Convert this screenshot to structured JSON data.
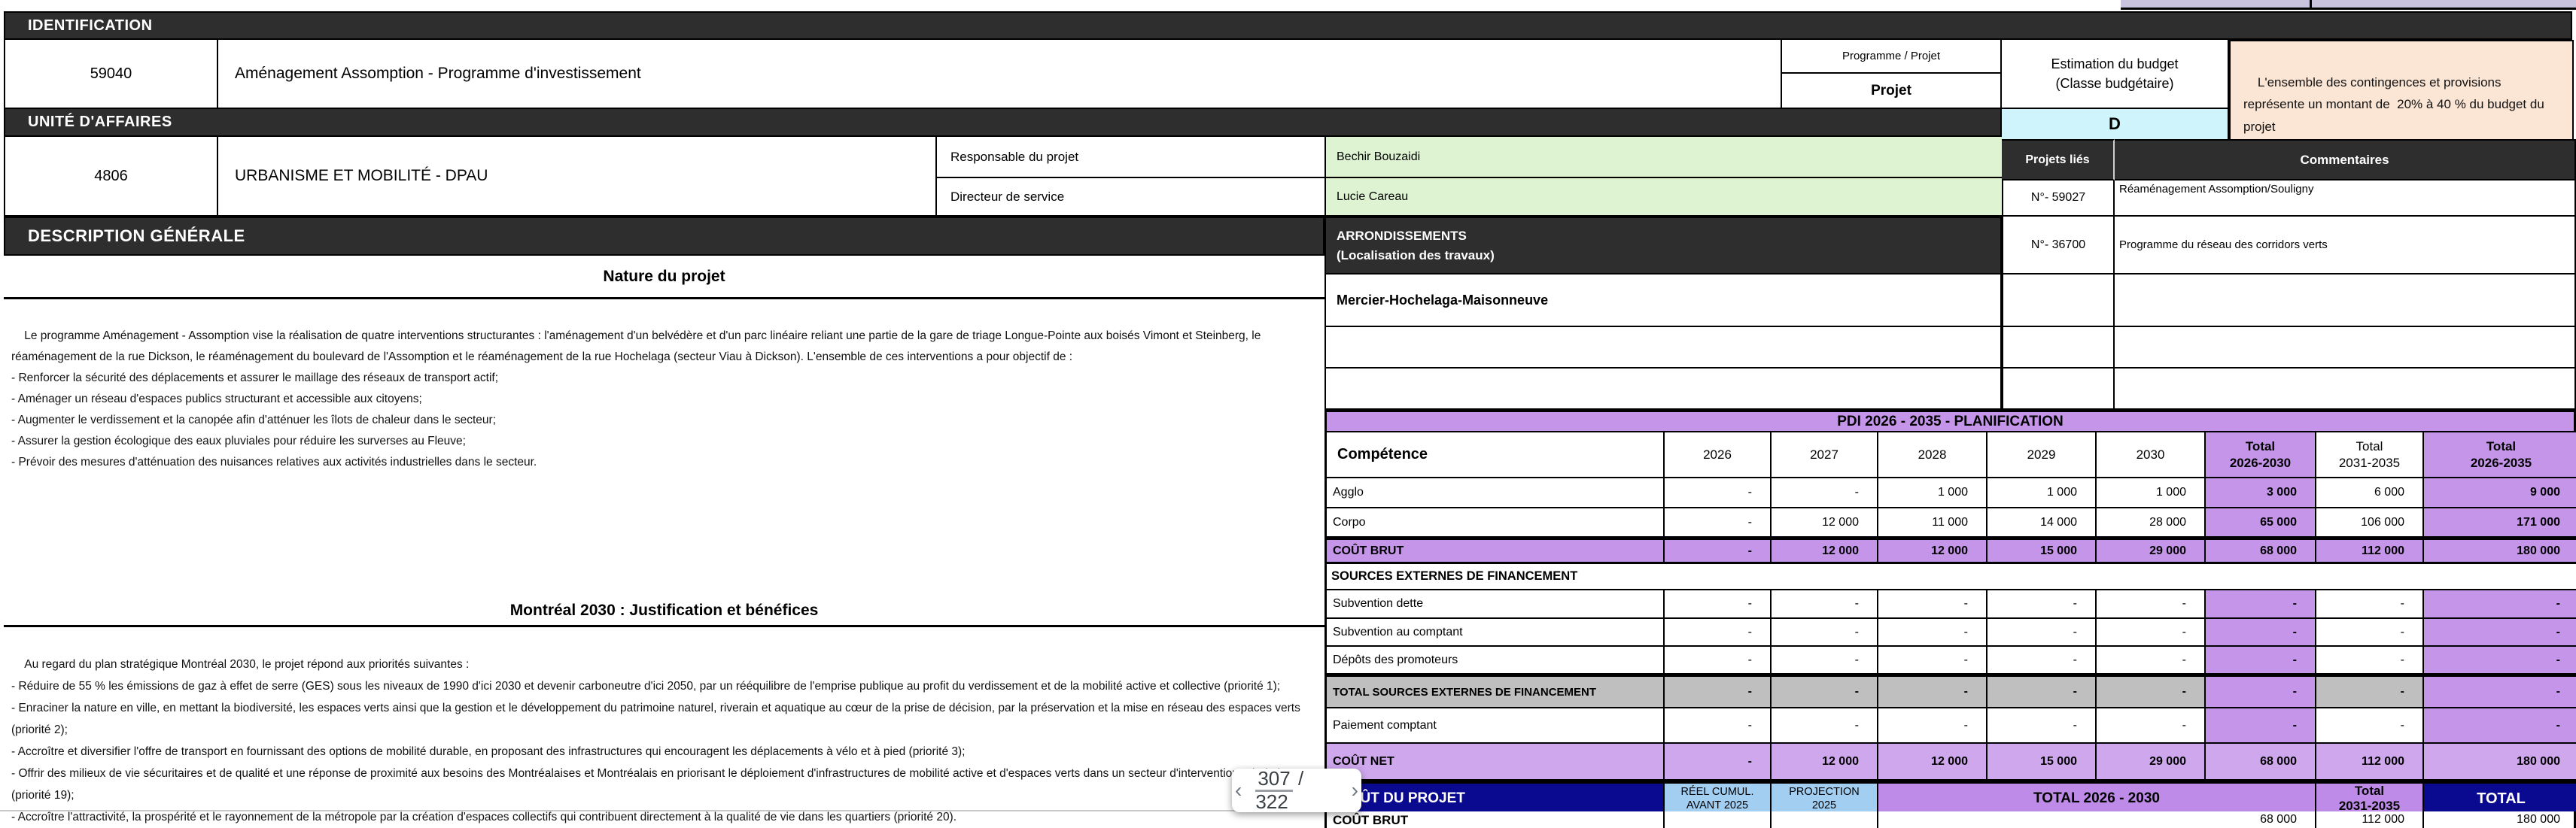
{
  "colors": {
    "bar_dark": "#2E2E2E",
    "green_cell": "#DEF3D2",
    "cyan_cell": "#CFF4FB",
    "peach_note": "#FBE5D5",
    "lavender_band": "#C9C3DE",
    "purple_strong": "#C495E9",
    "purple_light": "#CEA7EC",
    "purple_header": "#BE8CE8",
    "gray_row": "#BFBFBF",
    "navy": "#0A0A91",
    "light_blue": "#A2CEF2"
  },
  "identification": {
    "section_label": "IDENTIFICATION",
    "project_id": "59040",
    "project_title": "Aménagement Assomption - Programme d'investissement",
    "programme_projet": {
      "label": "Programme / Projet",
      "value": "Projet"
    },
    "budget": {
      "label": "Estimation du budget\n(Classe budgétaire)",
      "class_value": "D"
    },
    "note": "L'ensemble des contingences et provisions représente un montant de  20% à 40 % du budget du projet"
  },
  "unite": {
    "section_label": "UNITÉ D'AFFAIRES",
    "unit_id": "4806",
    "unit_name": "URBANISME ET MOBILITÉ - DPAU",
    "responsable": {
      "label": "Responsable du projet",
      "value": "Bechir Bouzaidi"
    },
    "directeur": {
      "label": "Directeur de service",
      "value": "Lucie Careau"
    }
  },
  "linked": {
    "header_num": "Projets liés",
    "header_comment": "Commentaires",
    "rows": [
      {
        "num": "N°- 59027",
        "comment": "Réaménagement Assomption/Souligny"
      },
      {
        "num": "N°- 36700",
        "comment": "Programme du réseau des corridors verts"
      },
      {
        "num": "",
        "comment": ""
      },
      {
        "num": "",
        "comment": ""
      },
      {
        "num": "",
        "comment": ""
      }
    ]
  },
  "description": {
    "section_label": "DESCRIPTION GÉNÉRALE",
    "arrondissements": {
      "label": "ARRONDISSEMENTS\n(Localisation des travaux)",
      "value": "Mercier-Hochelaga-Maisonneuve"
    },
    "nature": {
      "title": "Nature du projet",
      "text": "Le programme Aménagement - Assomption vise la réalisation de quatre interventions structurantes : l'aménagement d'un belvédère et d'un parc linéaire reliant une partie de la gare de triage Longue-Pointe aux boisés Vimont et Steinberg, le réaménagement de la rue Dickson, le réaménagement du boulevard de l'Assomption et le réaménagement de la rue Hochelaga (secteur Viau à Dickson). L'ensemble de ces interventions a pour objectif de :\n- Renforcer la sécurité des déplacements et assurer le maillage des réseaux de transport actif;\n- Aménager un réseau d'espaces publics structurant et accessible aux citoyens;\n- Augmenter le verdissement et la canopée afin d'atténuer les îlots de chaleur dans le secteur;\n- Assurer la gestion écologique des eaux pluviales pour réduire les surverses au Fleuve;\n- Prévoir des mesures d'atténuation des nuisances relatives aux activités industrielles dans le secteur."
    }
  },
  "montreal2030": {
    "title": "Montréal 2030 : Justification et bénéfices",
    "text": "Au regard du plan stratégique Montréal 2030, le projet répond aux priorités suivantes :\n- Réduire de 55 % les émissions de gaz à effet de serre (GES) sous les niveaux de 1990 d'ici 2030 et devenir carboneutre d'ici 2050, par un rééquilibre de l'emprise publique au profit du verdissement et de la mobilité active et collective (priorité 1);\n- Enraciner la nature en ville, en mettant la biodiversité, les espaces verts ainsi que la gestion et le développement du patrimoine naturel, riverain et aquatique au cœur de la prise de décision, par la préservation et la mise en réseau des espaces verts (priorité 2);\n- Accroître et diversifier l'offre de transport en fournissant des options de mobilité durable, en proposant des infrastructures qui encouragent les déplacements à vélo et à pied (priorité 3);\n- Offrir des milieux de vie sécuritaires et de qualité et une réponse de proximité aux besoins des Montréalaises et Montréalais en priorisant le déploiement d'infrastructures de mobilité active et d'espaces verts dans un secteur d'intervention prioritaire (priorité 19);\n- Accroître l'attractivité, la prospérité et le rayonnement de la métropole par la création d'espaces collectifs qui contribuent directement à la qualité de vie dans les quartiers (priorité 20)."
  },
  "pdi": {
    "title": "PDI 2026 - 2035 - PLANIFICATION",
    "columns": [
      "Compétence",
      "2026",
      "2027",
      "2028",
      "2029",
      "2030",
      "Total\n2026-2030",
      "Total\n2031-2035",
      "Total\n2026-2035"
    ],
    "rows": [
      {
        "label": "Agglo",
        "style": "normal",
        "values": [
          "-",
          "-",
          "1 000",
          "1 000",
          "1 000",
          "3 000",
          "6 000",
          "9 000"
        ]
      },
      {
        "label": "Corpo",
        "style": "normal",
        "values": [
          "-",
          "12 000",
          "11 000",
          "14 000",
          "28 000",
          "65 000",
          "106 000",
          "171 000"
        ]
      },
      {
        "label": "COÛT BRUT",
        "style": "brut",
        "values": [
          "-",
          "12 000",
          "12 000",
          "15 000",
          "29 000",
          "68 000",
          "112 000",
          "180 000"
        ]
      },
      {
        "label": "SOURCES EXTERNES DE FINANCEMENT",
        "style": "section",
        "values": []
      },
      {
        "label": "Subvention dette",
        "style": "normal",
        "values": [
          "-",
          "-",
          "-",
          "-",
          "-",
          "-",
          "-",
          "-"
        ]
      },
      {
        "label": "Subvention au comptant",
        "style": "normal",
        "values": [
          "-",
          "-",
          "-",
          "-",
          "-",
          "-",
          "-",
          "-"
        ]
      },
      {
        "label": "Dépôts des promoteurs",
        "style": "normal",
        "values": [
          "-",
          "-",
          "-",
          "-",
          "-",
          "-",
          "-",
          "-"
        ]
      },
      {
        "label": "TOTAL SOURCES EXTERNES DE FINANCEMENT",
        "style": "gray",
        "values": [
          "-",
          "-",
          "-",
          "-",
          "-",
          "-",
          "-",
          "-"
        ]
      },
      {
        "label": "Paiement comptant",
        "style": "normal",
        "values": [
          "-",
          "-",
          "-",
          "-",
          "-",
          "-",
          "-",
          "-"
        ]
      },
      {
        "label": "COÛT NET",
        "style": "net",
        "values": [
          "-",
          "12 000",
          "12 000",
          "15 000",
          "29 000",
          "68 000",
          "112 000",
          "180 000"
        ]
      }
    ]
  },
  "cout_projet": {
    "header": [
      "COÛT DU PROJET",
      "RÉEL CUMUL.\nAVANT 2025",
      "PROJECTION\n2025",
      "TOTAL 2026 - 2030",
      "Total\n2031-2035",
      "TOTAL"
    ],
    "rows": [
      {
        "label": "COÛT BRUT",
        "values": [
          "",
          "",
          "68 000",
          "112 000",
          "180 000"
        ]
      }
    ]
  },
  "pagination": {
    "prev_label": "‹",
    "page": "307",
    "slash": "/",
    "total": "322",
    "next_label": "›"
  }
}
